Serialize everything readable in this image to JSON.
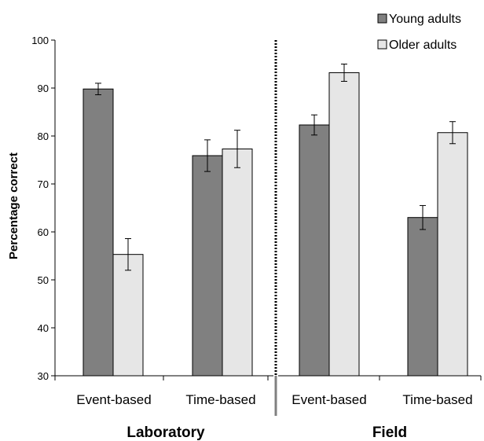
{
  "chart_data": {
    "type": "bar",
    "categories": [
      "Event-based",
      "Time-based",
      "Event-based",
      "Time-based"
    ],
    "groups": [
      {
        "label": "Laboratory",
        "categories": [
          0,
          1
        ]
      },
      {
        "label": "Field",
        "categories": [
          2,
          3
        ]
      }
    ],
    "series": [
      {
        "name": "Young adults",
        "color": "#808080",
        "values": [
          89.8,
          75.9,
          82.3,
          63.0
        ],
        "errors": [
          1.2,
          3.3,
          2.1,
          2.5
        ]
      },
      {
        "name": "Older adults",
        "color": "#e6e6e6",
        "values": [
          55.3,
          77.3,
          93.2,
          80.7
        ],
        "errors": [
          3.3,
          3.9,
          1.8,
          2.3
        ]
      }
    ],
    "ylabel": "Percentage correct",
    "ylim": [
      30,
      100
    ],
    "yticks": [
      "30",
      "40",
      "50",
      "60",
      "70",
      "80",
      "90",
      "100"
    ],
    "grid": false,
    "legend": "top-right"
  }
}
